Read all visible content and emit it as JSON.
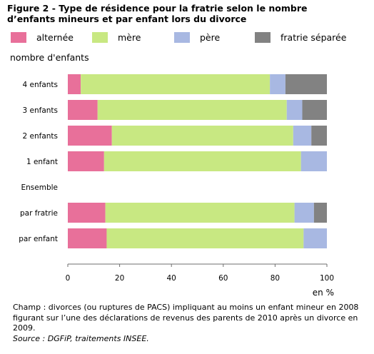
{
  "title_line1": "Figure 2 - Type de résidence pour la fratrie selon le nombre",
  "title_line2": "d’enfants mineurs et par enfant lors du divorce",
  "legend": [
    {
      "label": "alternée",
      "color": "#e8709a"
    },
    {
      "label": "mère",
      "color": "#c8e882"
    },
    {
      "label": "père",
      "color": "#a8b8e2"
    },
    {
      "label": "fratrie séparée",
      "color": "#828282"
    }
  ],
  "chart_data": {
    "type": "bar",
    "orientation": "horizontal",
    "stacked": true,
    "ylabel": "nombre d'enfants",
    "xlabel": "en %",
    "xlim": [
      0,
      100
    ],
    "xticks": [
      0,
      20,
      40,
      60,
      80,
      100
    ],
    "grid": false,
    "legend_position": "top",
    "categories": [
      "4 enfants",
      "3 enfants",
      "2 enfants",
      "1 enfant",
      "Ensemble",
      "par fratrie",
      "par enfant"
    ],
    "series": [
      {
        "name": "alternée",
        "color": "#e8709a",
        "values": [
          5,
          11.5,
          17,
          14,
          null,
          14.5,
          15
        ]
      },
      {
        "name": "mère",
        "color": "#c8e882",
        "values": [
          73,
          73,
          70,
          76,
          null,
          73,
          76
        ]
      },
      {
        "name": "père",
        "color": "#a8b8e2",
        "values": [
          6,
          6,
          7,
          10,
          null,
          7.5,
          9
        ]
      },
      {
        "name": "fratrie séparée",
        "color": "#828282",
        "values": [
          16,
          9.5,
          6,
          0,
          null,
          5,
          0
        ]
      }
    ]
  },
  "note": {
    "champ": "Champ : divorces (ou ruptures de PACS) impliquant au moins un enfant mineur en 2008 figurant sur l’une des déclarations de revenus des parents de 2010 après un divorce en 2009.",
    "source": "Source : DGFiP, traitements INSEE."
  }
}
